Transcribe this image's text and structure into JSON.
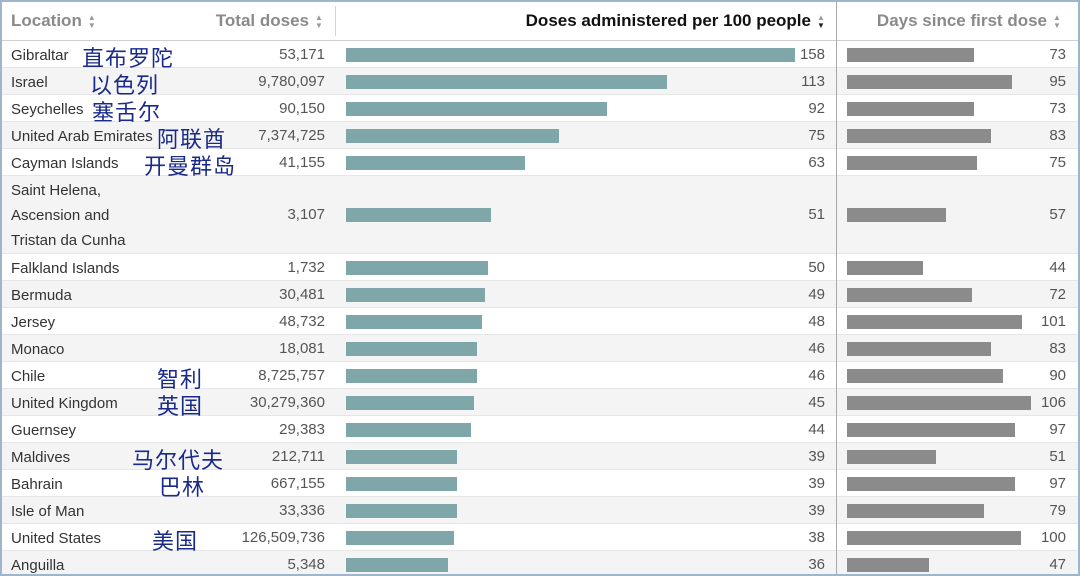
{
  "chart_data": {
    "type": "table",
    "columns": {
      "location": "Location",
      "total": "Total doses",
      "doses": "Doses administered per 100 people",
      "days": "Days since first dose"
    },
    "sorted_by": "Doses administered per 100 people",
    "colors": {
      "doses_bar": "#7fa7a9",
      "days_bar": "#8b8b8b",
      "annotation": "#1a2a8a"
    },
    "doses_max": 158,
    "days_max": 106,
    "rows": [
      {
        "location": "Gibraltar",
        "total": "53,171",
        "doses": 158,
        "days": 73,
        "zh": "直布罗陀"
      },
      {
        "location": "Israel",
        "total": "9,780,097",
        "doses": 113,
        "days": 95,
        "zh": "以色列"
      },
      {
        "location": "Seychelles",
        "total": "90,150",
        "doses": 92,
        "days": 73,
        "zh": "塞舌尔"
      },
      {
        "location": "United Arab Emirates",
        "total": "7,374,725",
        "doses": 75,
        "days": 83,
        "zh": "阿联酋"
      },
      {
        "location": "Cayman Islands",
        "total": "41,155",
        "doses": 63,
        "days": 75,
        "zh": "开曼群岛"
      },
      {
        "location": "Saint Helena,\nAscension and\nTristan da Cunha",
        "total": "3,107",
        "doses": 51,
        "days": 57,
        "zh": ""
      },
      {
        "location": "Falkland Islands",
        "total": "1,732",
        "doses": 50,
        "days": 44,
        "zh": ""
      },
      {
        "location": "Bermuda",
        "total": "30,481",
        "doses": 49,
        "days": 72,
        "zh": ""
      },
      {
        "location": "Jersey",
        "total": "48,732",
        "doses": 48,
        "days": 101,
        "zh": ""
      },
      {
        "location": "Monaco",
        "total": "18,081",
        "doses": 46,
        "days": 83,
        "zh": ""
      },
      {
        "location": "Chile",
        "total": "8,725,757",
        "doses": 46,
        "days": 90,
        "zh": "智利"
      },
      {
        "location": "United Kingdom",
        "total": "30,279,360",
        "doses": 45,
        "days": 106,
        "zh": "英国"
      },
      {
        "location": "Guernsey",
        "total": "29,383",
        "doses": 44,
        "days": 97,
        "zh": ""
      },
      {
        "location": "Maldives",
        "total": "212,711",
        "doses": 39,
        "days": 51,
        "zh": "马尔代夫"
      },
      {
        "location": "Bahrain",
        "total": "667,155",
        "doses": 39,
        "days": 97,
        "zh": "巴林"
      },
      {
        "location": "Isle of Man",
        "total": "33,336",
        "doses": 39,
        "days": 79,
        "zh": ""
      },
      {
        "location": "United States",
        "total": "126,509,736",
        "doses": 38,
        "days": 100,
        "zh": "美国"
      },
      {
        "location": "Anguilla",
        "total": "5,348",
        "doses": 36,
        "days": 47,
        "zh": ""
      }
    ]
  }
}
